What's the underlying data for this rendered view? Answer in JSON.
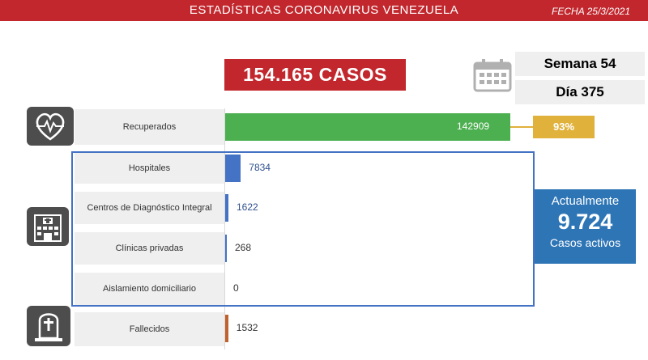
{
  "header": {
    "title": "ESTADÍSTICAS CORONAVIRUS VENEZUELA",
    "date": "FECHA 25/3/2021"
  },
  "total_cases": "154.165 CASOS",
  "week": "Semana 54",
  "day": "Día 375",
  "recovered_pct": "93%",
  "active": {
    "line1": "Actualmente",
    "value": "9.724",
    "line2": "Casos activos"
  },
  "icons": {
    "recovered": "heart-pulse-icon",
    "facilities": "hospital-building-icon",
    "deaths": "tombstone-icon",
    "calendar": "calendar-icon"
  },
  "colors": {
    "header": "#c1272d",
    "recovered": "#4caf50",
    "hospitals": "#4472c4",
    "deaths": "#c0622d",
    "percent": "#e0b13b",
    "active": "#2e75b6"
  },
  "chart_data": {
    "type": "bar",
    "orientation": "horizontal",
    "categories": [
      "Recuperados",
      "Hospitales",
      "Centros de Diagnóstico Integral",
      "Clínicas privadas",
      "Aislamiento domiciliario",
      "Fallecidos"
    ],
    "values": [
      142909,
      7834,
      1622,
      268,
      0,
      1532
    ],
    "value_labels": [
      "142909",
      "7834",
      "1622",
      "268",
      "0",
      "1532"
    ],
    "bar_colors": [
      "#4caf50",
      "#4472c4",
      "#4472c4",
      "#4472c4",
      "#4472c4",
      "#c0622d"
    ],
    "grid": false
  }
}
